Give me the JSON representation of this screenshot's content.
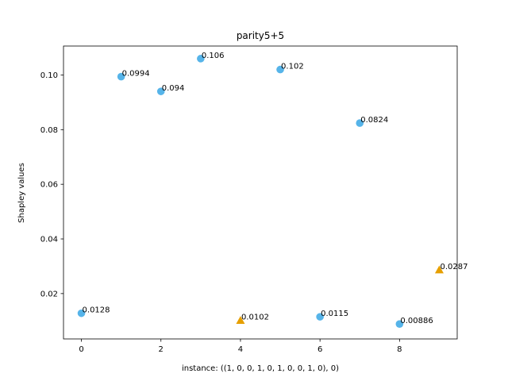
{
  "chart_data": {
    "type": "scatter",
    "title": "parity5+5",
    "xlabel": "instance: ((1, 0, 0, 1, 0, 1, 0, 0, 1, 0), 0)",
    "ylabel": "Shapley values",
    "xlim": [
      -0.45,
      9.45
    ],
    "ylim": [
      0.0034,
      0.1106
    ],
    "xticks": [
      0,
      2,
      4,
      6,
      8
    ],
    "xtick_labels": [
      "0",
      "2",
      "4",
      "6",
      "8"
    ],
    "yticks": [
      0.02,
      0.04,
      0.06,
      0.08,
      0.1
    ],
    "ytick_labels": [
      "0.02",
      "0.04",
      "0.06",
      "0.08",
      "0.10"
    ],
    "grid": false,
    "colors": {
      "circle": "#56B4E9",
      "triangle": "#E69F00"
    },
    "points": [
      {
        "x": 0,
        "y": 0.0128,
        "label": "0.0128",
        "marker": "circle"
      },
      {
        "x": 1,
        "y": 0.0994,
        "label": "0.0994",
        "marker": "circle"
      },
      {
        "x": 2,
        "y": 0.094,
        "label": "0.094",
        "marker": "circle"
      },
      {
        "x": 3,
        "y": 0.106,
        "label": "0.106",
        "marker": "circle"
      },
      {
        "x": 4,
        "y": 0.0102,
        "label": "0.0102",
        "marker": "triangle"
      },
      {
        "x": 5,
        "y": 0.102,
        "label": "0.102",
        "marker": "circle"
      },
      {
        "x": 6,
        "y": 0.0115,
        "label": "0.0115",
        "marker": "circle"
      },
      {
        "x": 7,
        "y": 0.0824,
        "label": "0.0824",
        "marker": "circle"
      },
      {
        "x": 8,
        "y": 0.00886,
        "label": "0.00886",
        "marker": "circle"
      },
      {
        "x": 9,
        "y": 0.0287,
        "label": "0.0287",
        "marker": "triangle"
      }
    ]
  }
}
